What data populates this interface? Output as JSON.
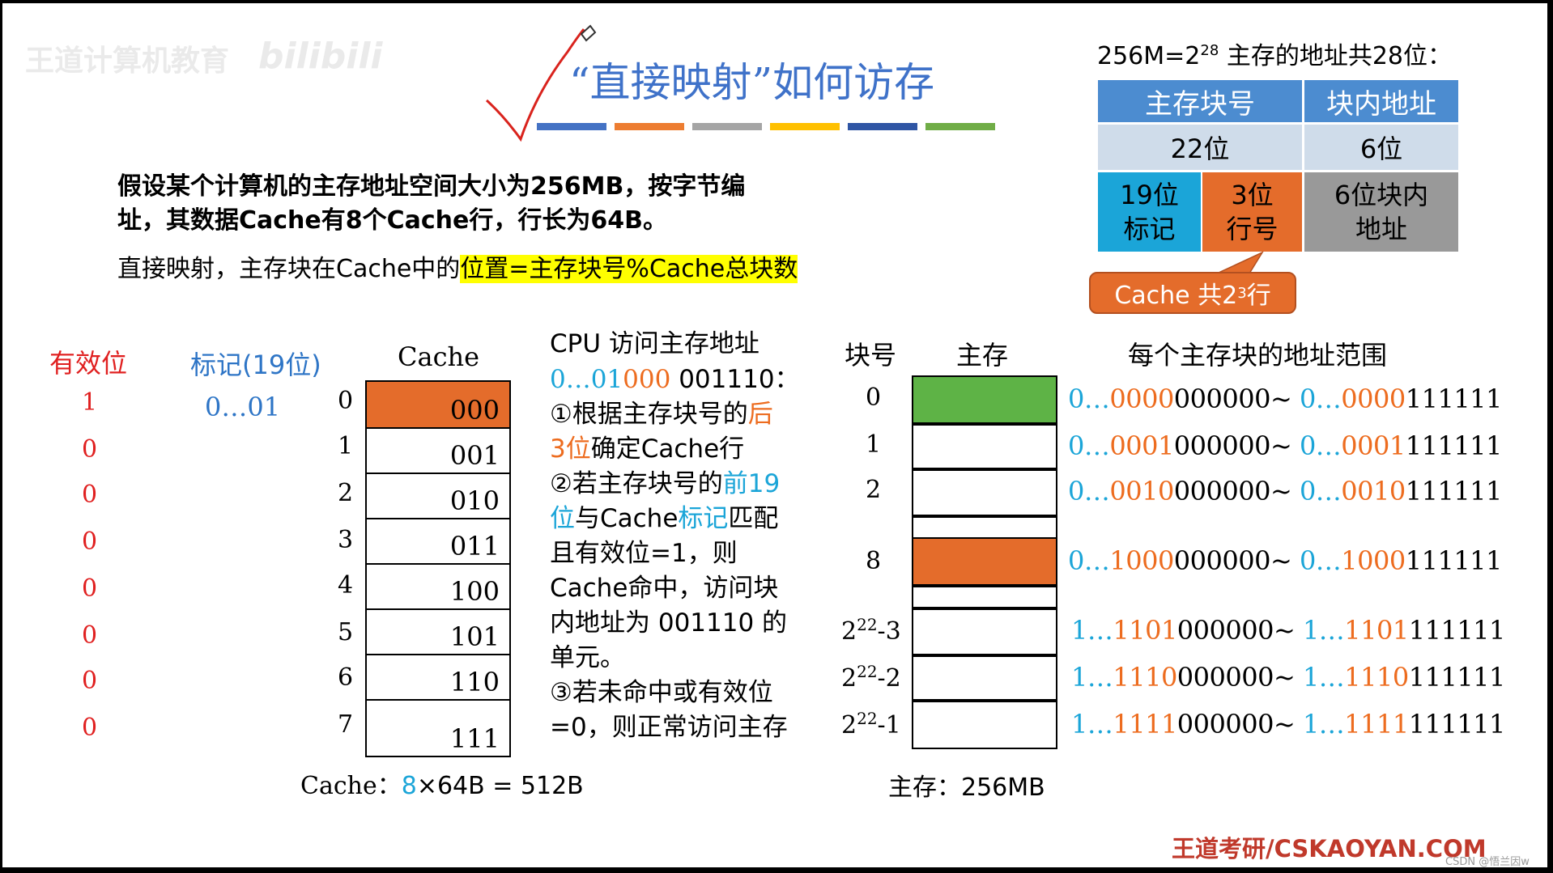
{
  "watermark": {
    "text": "王道计算机教育",
    "logo": "bilibili"
  },
  "title": "“直接映射”如何访存",
  "intro": {
    "line1": "假设某个计算机的主存地址空间大小为256MB，按字节编",
    "line2": "址，其数据Cache有8个Cache行，行长为64B。",
    "line3_plain": "直接映射，主存块在Cache中的",
    "line3_highlight": "位置=主存块号%Cache总块数"
  },
  "address_format": {
    "caption_prefix": "256M=2",
    "caption_exp": "28",
    "caption_suffix": " 主存的地址共28位：",
    "header_block_no": "主存块号",
    "header_offset": "块内地址",
    "bits_block": "22位",
    "bits_offset": "6位",
    "tag_l1": "19位",
    "tag_l2": "标记",
    "line_l1": "3位",
    "line_l2": "行号",
    "off_l1": "6位块内",
    "off_l2": "地址",
    "callout_prefix": "Cache 共2",
    "callout_exp": "3",
    "callout_suffix": " 行"
  },
  "cache_table": {
    "header_valid": "有效位",
    "header_tag": "标记(19位)",
    "header_cache": "Cache",
    "rows": [
      {
        "valid": "1",
        "tag": "0…01",
        "index": "0",
        "line": "000"
      },
      {
        "valid": "0",
        "tag": "",
        "index": "1",
        "line": "001"
      },
      {
        "valid": "0",
        "tag": "",
        "index": "2",
        "line": "010"
      },
      {
        "valid": "0",
        "tag": "",
        "index": "3",
        "line": "011"
      },
      {
        "valid": "0",
        "tag": "",
        "index": "4",
        "line": "100"
      },
      {
        "valid": "0",
        "tag": "",
        "index": "5",
        "line": "101"
      },
      {
        "valid": "0",
        "tag": "",
        "index": "6",
        "line": "110"
      },
      {
        "valid": "0",
        "tag": "",
        "index": "7",
        "line": "111"
      }
    ],
    "footer_prefix": "Cache：",
    "footer_num": "8",
    "footer_rest": "×64B = 512B"
  },
  "cpu_access": {
    "title": "CPU 访问主存地址",
    "addr_tag": "0…01",
    "addr_line": "000",
    "addr_offset": " 001110：",
    "s1a": "①根据主存块号的",
    "s1b": "后",
    "s1c": "3位",
    "s1d": "确定Cache行",
    "s2a": "②若主存块号的",
    "s2b": "前19",
    "s2c": "位",
    "s2d": "与Cache",
    "s2e": "标记",
    "s2f": "匹配",
    "s2g": "且有效位=1，则",
    "s2h": "Cache命中，访问块",
    "s2i": "内地址为 001110 的",
    "s2j": "单元。",
    "s3a": "③若未命中或有效位",
    "s3b": "=0，则正常访问主存"
  },
  "memory": {
    "header_block": "块号",
    "header_mem": "主存",
    "header_range": "每个主存块的地址范围",
    "blocks": [
      {
        "id": "0",
        "start_hi": "0…",
        "start_mid": "0000",
        "start_lo": "000000",
        "end_hi": "0…",
        "end_mid": "0000",
        "end_lo": "111111"
      },
      {
        "id": "1",
        "start_hi": "0…",
        "start_mid": "0001",
        "start_lo": "000000",
        "end_hi": "0…",
        "end_mid": "0001",
        "end_lo": "111111"
      },
      {
        "id": "2",
        "start_hi": "0…",
        "start_mid": "0010",
        "start_lo": "000000",
        "end_hi": "0…",
        "end_mid": "0010",
        "end_lo": "111111"
      },
      {
        "id": "8",
        "start_hi": "0…",
        "start_mid": "1000",
        "start_lo": "000000",
        "end_hi": "0…",
        "end_mid": "1000",
        "end_lo": "111111"
      },
      {
        "id_base": "2",
        "id_exp": "22",
        "id_suffix": "-3",
        "start_hi": "1…",
        "start_mid": "1101",
        "start_lo": "000000",
        "end_hi": "1…",
        "end_mid": "1101",
        "end_lo": "111111"
      },
      {
        "id_base": "2",
        "id_exp": "22",
        "id_suffix": "-2",
        "start_hi": "1…",
        "start_mid": "1110",
        "start_lo": "000000",
        "end_hi": "1…",
        "end_mid": "1110",
        "end_lo": "111111"
      },
      {
        "id_base": "2",
        "id_exp": "22",
        "id_suffix": "-1",
        "start_hi": "1…",
        "start_mid": "1111",
        "start_lo": "000000",
        "end_hi": "1…",
        "end_mid": "1111",
        "end_lo": "111111"
      }
    ],
    "tilde": "~ ",
    "footer": "主存：256MB"
  },
  "brand": "王道考研/CSKAOYAN.COM",
  "csdn": "CSDN @悟兰因w",
  "colors": {
    "orange": "#e46c2b",
    "green": "#5eb346",
    "blue_header": "#4c8cd0",
    "light_blue": "#cfdcea",
    "cyan": "#1ba5d8",
    "gray": "#999999"
  }
}
